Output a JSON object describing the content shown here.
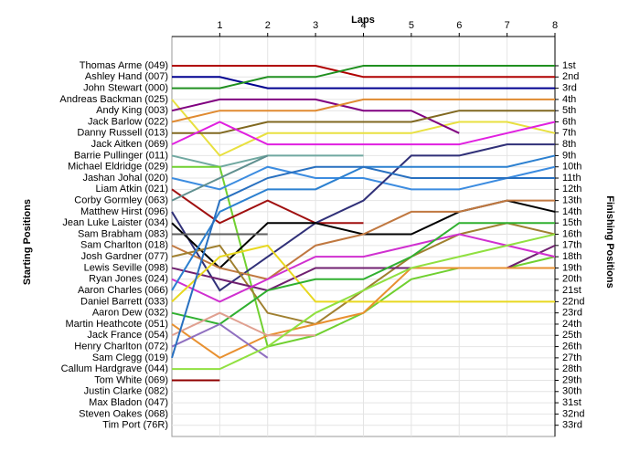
{
  "chart_data": {
    "type": "line",
    "title": "Laps",
    "y_label": "Starting Positions",
    "y2_label": "Finishing Positions",
    "x": [
      0,
      1,
      2,
      3,
      4,
      5,
      6,
      7,
      8
    ],
    "xlim": [
      0,
      8
    ],
    "xticks": [
      1,
      2,
      3,
      4,
      5,
      6,
      7,
      8
    ],
    "ylim": [
      34,
      -1.6
    ],
    "y2lim": [
      34,
      -1.6
    ],
    "grid": true,
    "yticks": [
      {
        "value": 1,
        "label": "Thomas Arme (049)"
      },
      {
        "value": 2,
        "label": "Ashley Hand (007)"
      },
      {
        "value": 3,
        "label": "John Stewart (000)"
      },
      {
        "value": 4,
        "label": "Andreas Backman (025)"
      },
      {
        "value": 5,
        "label": "Andy King (003)"
      },
      {
        "value": 6,
        "label": "Jack Barlow (022)"
      },
      {
        "value": 7,
        "label": "Danny Russell (013)"
      },
      {
        "value": 8,
        "label": "Jack Aitken (069)"
      },
      {
        "value": 9,
        "label": "Barrie Pullinger (011)"
      },
      {
        "value": 10,
        "label": "Michael Eldridge (029)"
      },
      {
        "value": 11,
        "label": "Jashan Johal (020)"
      },
      {
        "value": 12,
        "label": "Liam Atkin (021)"
      },
      {
        "value": 13,
        "label": "Corby Gormley (063)"
      },
      {
        "value": 14,
        "label": "Matthew Hirst (096)"
      },
      {
        "value": 15,
        "label": "Jean Luke Laister (034)"
      },
      {
        "value": 16,
        "label": "Sam Brabham (083)"
      },
      {
        "value": 17,
        "label": "Sam Charlton (018)"
      },
      {
        "value": 18,
        "label": "Josh Gardner (077)"
      },
      {
        "value": 19,
        "label": "Lewis Seville (098)"
      },
      {
        "value": 20,
        "label": "Ryan Jones (024)"
      },
      {
        "value": 21,
        "label": "Aaron Charles (066)"
      },
      {
        "value": 22,
        "label": "Daniel Barrett (033)"
      },
      {
        "value": 23,
        "label": "Aaron Dew (032)"
      },
      {
        "value": 24,
        "label": "Martin Heathcote (051)"
      },
      {
        "value": 25,
        "label": "Jack France (054)"
      },
      {
        "value": 26,
        "label": "Henry Charlton (072)"
      },
      {
        "value": 27,
        "label": "Sam Clegg (019)"
      },
      {
        "value": 28,
        "label": "Callum Hardgrave (044)"
      },
      {
        "value": 29,
        "label": "Tom White (069)"
      },
      {
        "value": 30,
        "label": "Justin Clarke (082)"
      },
      {
        "value": 31,
        "label": "Max Bladon (047)"
      },
      {
        "value": 32,
        "label": "Steven Oakes (068)"
      },
      {
        "value": 33,
        "label": "Tim Port (76R)"
      }
    ],
    "y2ticks": [
      {
        "value": 1,
        "label": "1st"
      },
      {
        "value": 2,
        "label": "2nd"
      },
      {
        "value": 3,
        "label": "3rd"
      },
      {
        "value": 4,
        "label": "4th"
      },
      {
        "value": 5,
        "label": "5th"
      },
      {
        "value": 6,
        "label": "6th"
      },
      {
        "value": 7,
        "label": "7th"
      },
      {
        "value": 8,
        "label": "8th"
      },
      {
        "value": 9,
        "label": "9th"
      },
      {
        "value": 10,
        "label": "10th"
      },
      {
        "value": 11,
        "label": "11th"
      },
      {
        "value": 12,
        "label": "12th"
      },
      {
        "value": 13,
        "label": "13th"
      },
      {
        "value": 14,
        "label": "14th"
      },
      {
        "value": 15,
        "label": "15th"
      },
      {
        "value": 16,
        "label": "16th"
      },
      {
        "value": 17,
        "label": "17th"
      },
      {
        "value": 18,
        "label": "18th"
      },
      {
        "value": 19,
        "label": "19th"
      },
      {
        "value": 20,
        "label": "20th"
      },
      {
        "value": 21,
        "label": "21st"
      },
      {
        "value": 22,
        "label": "22nd"
      },
      {
        "value": 23,
        "label": "23rd"
      },
      {
        "value": 24,
        "label": "24th"
      },
      {
        "value": 25,
        "label": "25th"
      },
      {
        "value": 26,
        "label": "26th"
      },
      {
        "value": 27,
        "label": "27th"
      },
      {
        "value": 28,
        "label": "28th"
      },
      {
        "value": 29,
        "label": "29th"
      },
      {
        "value": 30,
        "label": "30th"
      },
      {
        "value": 31,
        "label": "31st"
      },
      {
        "value": 32,
        "label": "32nd"
      },
      {
        "value": 33,
        "label": "33rd"
      }
    ],
    "series": [
      {
        "color": "#b00000",
        "values": [
          1,
          1,
          1,
          1,
          2,
          2,
          2,
          2,
          2
        ]
      },
      {
        "color": "#000090",
        "values": [
          2,
          2,
          3,
          3,
          3,
          3,
          3,
          3,
          3
        ]
      },
      {
        "color": "#209020",
        "values": [
          3,
          3,
          2,
          2,
          1,
          1,
          1,
          1,
          1
        ]
      },
      {
        "color": "#e8e040",
        "values": [
          4,
          9,
          7,
          7,
          7,
          7,
          6,
          6,
          7
        ]
      },
      {
        "color": "#800080",
        "values": [
          5,
          4,
          4,
          4,
          5,
          5,
          7,
          null,
          null
        ]
      },
      {
        "color": "#e08a30",
        "values": [
          6,
          5,
          5,
          5,
          4,
          4,
          4,
          4,
          4
        ]
      },
      {
        "color": "#806820",
        "values": [
          7,
          7,
          6,
          6,
          6,
          6,
          5,
          5,
          5
        ]
      },
      {
        "color": "#e020e0",
        "values": [
          8,
          6,
          8,
          8,
          8,
          8,
          8,
          7,
          6
        ]
      },
      {
        "color": "#70a8a0",
        "values": [
          9,
          10,
          9,
          9,
          9,
          null,
          null,
          null,
          null
        ]
      },
      {
        "color": "#70d030",
        "values": [
          10,
          10,
          26,
          25,
          23,
          20,
          19,
          19,
          18
        ]
      },
      {
        "color": "#3c8ce0",
        "values": [
          11,
          12,
          10,
          11,
          11,
          12,
          12,
          11,
          10
        ]
      },
      {
        "color": "#a01010",
        "values": [
          12,
          15,
          13,
          15,
          15,
          null,
          null,
          null,
          null
        ]
      },
      {
        "color": "#609090",
        "values": [
          13,
          11,
          9,
          null,
          null,
          null,
          null,
          null,
          null
        ]
      },
      {
        "color": "#303078",
        "values": [
          14,
          21,
          18,
          15,
          13,
          9,
          9,
          8,
          8
        ]
      },
      {
        "color": "#000000",
        "values": [
          15,
          19,
          15,
          15,
          16,
          16,
          14,
          13,
          14
        ]
      },
      {
        "color": "#606060",
        "values": [
          16,
          16,
          16,
          null,
          null,
          null,
          null,
          null,
          null
        ]
      },
      {
        "color": "#c07840",
        "values": [
          17,
          19,
          20,
          17,
          16,
          14,
          14,
          13,
          13
        ]
      },
      {
        "color": "#a08030",
        "values": [
          18,
          17,
          23,
          24,
          21,
          18,
          16,
          15,
          16
        ]
      },
      {
        "color": "#702070",
        "values": [
          19,
          20,
          21,
          19,
          19,
          19,
          19,
          19,
          17
        ]
      },
      {
        "color": "#d030d0",
        "values": [
          20,
          22,
          20,
          18,
          18,
          17,
          16,
          17,
          18
        ]
      },
      {
        "color": "#2c80d0",
        "values": [
          21,
          14,
          12,
          12,
          10,
          10,
          10,
          10,
          9
        ]
      },
      {
        "color": "#e8d820",
        "values": [
          22,
          18,
          17,
          22,
          22,
          22,
          22,
          22,
          22
        ]
      },
      {
        "color": "#30b030",
        "values": [
          23,
          24,
          21,
          20,
          20,
          18,
          15,
          15,
          15
        ]
      },
      {
        "color": "#e89030",
        "values": [
          24,
          27,
          25,
          24,
          23,
          19,
          19,
          19,
          19
        ]
      },
      {
        "color": "#e0a090",
        "values": [
          25,
          23,
          25,
          25,
          null,
          null,
          null,
          null,
          null
        ]
      },
      {
        "color": "#9070c0",
        "values": [
          26,
          24,
          27,
          null,
          null,
          null,
          null,
          null,
          null
        ]
      },
      {
        "color": "#2870c0",
        "values": [
          27,
          13,
          11,
          10,
          10,
          11,
          11,
          11,
          11
        ]
      },
      {
        "color": "#90e040",
        "values": [
          28,
          28,
          26,
          23,
          21,
          19,
          18,
          17,
          16
        ]
      },
      {
        "color": "#900000",
        "values": [
          29,
          29,
          null,
          null,
          null,
          null,
          null,
          null,
          null
        ]
      }
    ]
  }
}
